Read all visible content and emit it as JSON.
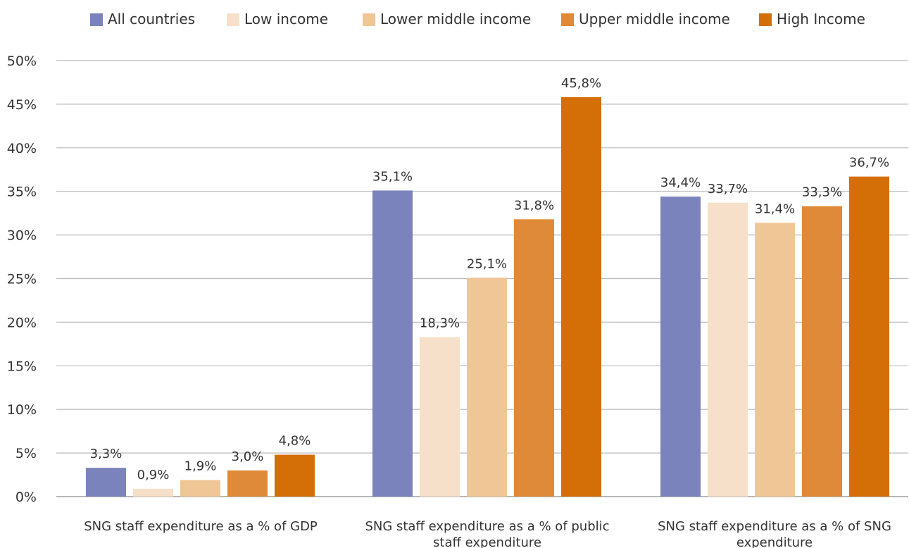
{
  "chart_data": {
    "type": "bar",
    "categories": [
      [
        "SNG staff expenditure as a % of GDP"
      ],
      [
        "SNG staff expenditure as a % of public",
        "staff expenditure"
      ],
      [
        "SNG staff expenditure as a % of SNG",
        "expenditure"
      ]
    ],
    "series": [
      {
        "name": "All countries",
        "color": "#7B83BD",
        "values": [
          3.3,
          35.1,
          34.4
        ],
        "labels": [
          "3,3%",
          "35,1%",
          "34,4%"
        ]
      },
      {
        "name": "Low income",
        "color": "#F7E0C9",
        "values": [
          0.9,
          18.3,
          33.7
        ],
        "labels": [
          "0,9%",
          "18,3%",
          "33,7%"
        ]
      },
      {
        "name": "Lower middle income",
        "color": "#F0C697",
        "values": [
          1.9,
          25.1,
          31.4
        ],
        "labels": [
          "1,9%",
          "25,1%",
          "31,4%"
        ]
      },
      {
        "name": "Upper middle income",
        "color": "#DF8A38",
        "values": [
          3.0,
          31.8,
          33.3
        ],
        "labels": [
          "3,0%",
          "31,8%",
          "33,3%"
        ]
      },
      {
        "name": "High Income",
        "color": "#D36F06",
        "values": [
          4.8,
          45.8,
          36.7
        ],
        "labels": [
          "4,8%",
          "45,8%",
          "36,7%"
        ]
      }
    ],
    "ylim": [
      0,
      50
    ],
    "yticks": [
      0,
      5,
      10,
      15,
      20,
      25,
      30,
      35,
      40,
      45,
      50
    ],
    "ytick_labels": [
      "0%",
      "5%",
      "10%",
      "15%",
      "20%",
      "25%",
      "30%",
      "35%",
      "40%",
      "45%",
      "50%"
    ],
    "grid": true,
    "legend": "top-center"
  }
}
